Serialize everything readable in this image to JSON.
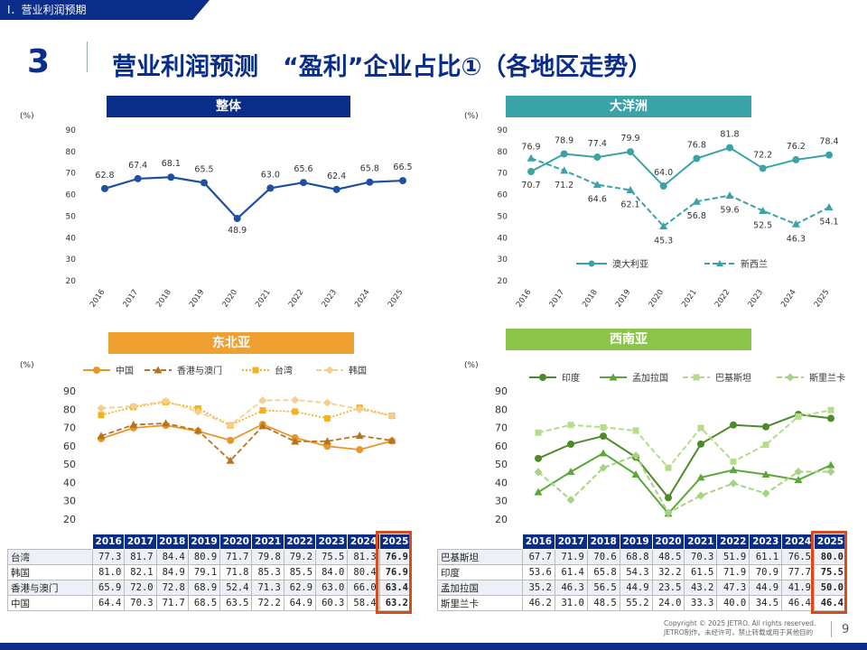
{
  "section_tab": "Ⅰ．营业利润预期",
  "page_number_big": "3",
  "page_title": "营业利润预测　“盈利”企业占比①（各地区走势）",
  "years": [
    "2016",
    "2017",
    "2018",
    "2019",
    "2020",
    "2021",
    "2022",
    "2023",
    "2024",
    "2025"
  ],
  "colors": {
    "navy": "#0a2d8a",
    "teal": "#3aa3a8",
    "orange": "#f0a030",
    "green": "#8cc44a",
    "line_blue": "#1f4fa0",
    "red_box": "#d94a1e"
  },
  "chart_data": [
    {
      "type": "line",
      "title": "整体",
      "unit_label": "(%)",
      "ylim": [
        20,
        90
      ],
      "yticks": [
        "20",
        "30",
        "40",
        "50",
        "60",
        "70",
        "80",
        "90"
      ],
      "categories": [
        "2016",
        "2017",
        "2018",
        "2019",
        "2020",
        "2021",
        "2022",
        "2023",
        "2024",
        "2025"
      ],
      "series": [
        {
          "values": [
            62.8,
            67.4,
            68.1,
            65.5,
            48.9,
            63.0,
            65.6,
            62.4,
            65.8,
            66.5
          ],
          "labels": [
            "62.8",
            "67.4",
            "68.1",
            "65.5",
            "48.9",
            "63.0",
            "65.6",
            "62.4",
            "65.8",
            "66.5"
          ],
          "color": "#1f4fa0"
        }
      ]
    },
    {
      "type": "line",
      "title": "大洋洲",
      "unit_label": "(%)",
      "ylim": [
        20,
        90
      ],
      "yticks": [
        "20",
        "30",
        "40",
        "50",
        "60",
        "70",
        "80",
        "90"
      ],
      "categories": [
        "2016",
        "2017",
        "2018",
        "2019",
        "2020",
        "2021",
        "2022",
        "2023",
        "2024",
        "2025"
      ],
      "legend": [
        "澳大利亚",
        "新西兰"
      ],
      "series": [
        {
          "name": "澳大利亚",
          "values": [
            70.7,
            78.9,
            77.4,
            79.9,
            64.0,
            76.8,
            81.8,
            72.2,
            76.2,
            78.4
          ],
          "labels": [
            "70.7",
            "78.9",
            "77.4",
            "79.9",
            "64.0",
            "76.8",
            "81.8",
            "72.2",
            "76.2",
            "78.4"
          ],
          "color": "#3aa3a8",
          "dash": false
        },
        {
          "name": "新西兰",
          "values": [
            76.9,
            71.2,
            64.6,
            62.1,
            45.3,
            56.8,
            59.6,
            52.5,
            46.3,
            54.1
          ],
          "labels": [
            "76.9",
            "71.2",
            "64.6",
            "62.1",
            "45.3",
            "56.8",
            "59.6",
            "52.5",
            "46.3",
            "54.1"
          ],
          "color": "#3aa3a8",
          "dash": true
        }
      ]
    },
    {
      "type": "line",
      "title": "东北亚",
      "unit_label": "(%)",
      "ylim": [
        20,
        90
      ],
      "yticks": [
        "20",
        "30",
        "40",
        "50",
        "60",
        "70",
        "80",
        "90"
      ],
      "categories": [
        "2016",
        "2017",
        "2018",
        "2019",
        "2020",
        "2021",
        "2022",
        "2023",
        "2024",
        "2025"
      ],
      "legend": [
        "中国",
        "香港与澳门",
        "台湾",
        "韩国"
      ],
      "series": [
        {
          "name": "中国",
          "values": [
            64.4,
            70.3,
            71.7,
            68.5,
            63.5,
            72.2,
            64.9,
            60.3,
            58.4,
            63.2
          ],
          "color": "#e8962a",
          "dash": false,
          "marker": "circle"
        },
        {
          "name": "香港与澳门",
          "values": [
            65.9,
            72.0,
            72.8,
            68.9,
            52.4,
            71.3,
            62.9,
            63.0,
            66.0,
            63.4
          ],
          "color": "#b8741a",
          "dash": true,
          "marker": "triangle"
        },
        {
          "name": "台湾",
          "values": [
            77.3,
            81.7,
            84.4,
            80.9,
            71.7,
            79.8,
            79.2,
            75.5,
            81.3,
            76.9
          ],
          "color": "#f2b21e",
          "dash": "dot",
          "marker": "square"
        },
        {
          "name": "韩国",
          "values": [
            81.0,
            82.1,
            84.9,
            79.1,
            71.8,
            85.3,
            85.5,
            84.0,
            80.4,
            76.9
          ],
          "color": "#f6cf90",
          "dash": true,
          "marker": "diamond"
        }
      ]
    },
    {
      "type": "line",
      "title": "西南亚",
      "unit_label": "(%)",
      "ylim": [
        20,
        90
      ],
      "yticks": [
        "20",
        "30",
        "40",
        "50",
        "60",
        "70",
        "80",
        "90"
      ],
      "categories": [
        "2016",
        "2017",
        "2018",
        "2019",
        "2020",
        "2021",
        "2022",
        "2023",
        "2024",
        "2025"
      ],
      "legend": [
        "印度",
        "孟加拉国",
        "巴基斯坦",
        "斯里兰卡"
      ],
      "series": [
        {
          "name": "印度",
          "values": [
            53.6,
            61.4,
            65.8,
            54.3,
            32.2,
            61.5,
            71.9,
            70.9,
            77.7,
            75.5
          ],
          "color": "#4e8a2a",
          "dash": false,
          "marker": "circle"
        },
        {
          "name": "孟加拉国",
          "values": [
            35.2,
            46.3,
            56.5,
            44.9,
            23.5,
            43.2,
            47.3,
            44.9,
            41.9,
            50.0
          ],
          "color": "#5aa83a",
          "dash": false,
          "marker": "triangle"
        },
        {
          "name": "巴基斯坦",
          "values": [
            67.7,
            71.9,
            70.6,
            68.8,
            48.5,
            70.3,
            51.9,
            61.1,
            76.5,
            80.0
          ],
          "color": "#b4dc8a",
          "dash": true,
          "marker": "square"
        },
        {
          "name": "斯里兰卡",
          "values": [
            46.2,
            31.0,
            48.5,
            55.2,
            24.0,
            33.3,
            40.0,
            34.5,
            46.4,
            46.4
          ],
          "color": "#a6d484",
          "dash": true,
          "marker": "diamond"
        }
      ]
    }
  ],
  "tables": {
    "northeast": {
      "rows": [
        {
          "label": "台湾",
          "values": [
            "77.3",
            "81.7",
            "84.4",
            "80.9",
            "71.7",
            "79.8",
            "79.2",
            "75.5",
            "81.3",
            "76.9"
          ]
        },
        {
          "label": "韩国",
          "values": [
            "81.0",
            "82.1",
            "84.9",
            "79.1",
            "71.8",
            "85.3",
            "85.5",
            "84.0",
            "80.4",
            "76.9"
          ]
        },
        {
          "label": "香港与澳门",
          "values": [
            "65.9",
            "72.0",
            "72.8",
            "68.9",
            "52.4",
            "71.3",
            "62.9",
            "63.0",
            "66.0",
            "63.4"
          ]
        },
        {
          "label": "中国",
          "values": [
            "64.4",
            "70.3",
            "71.7",
            "68.5",
            "63.5",
            "72.2",
            "64.9",
            "60.3",
            "58.4",
            "63.2"
          ]
        }
      ]
    },
    "southwest": {
      "rows": [
        {
          "label": "巴基斯坦",
          "values": [
            "67.7",
            "71.9",
            "70.6",
            "68.8",
            "48.5",
            "70.3",
            "51.9",
            "61.1",
            "76.5",
            "80.0"
          ]
        },
        {
          "label": "印度",
          "values": [
            "53.6",
            "61.4",
            "65.8",
            "54.3",
            "32.2",
            "61.5",
            "71.9",
            "70.9",
            "77.7",
            "75.5"
          ]
        },
        {
          "label": "孟加拉国",
          "values": [
            "35.2",
            "46.3",
            "56.5",
            "44.9",
            "23.5",
            "43.2",
            "47.3",
            "44.9",
            "41.9",
            "50.0"
          ]
        },
        {
          "label": "斯里兰卡",
          "values": [
            "46.2",
            "31.0",
            "48.5",
            "55.2",
            "24.0",
            "33.3",
            "40.0",
            "34.5",
            "46.4",
            "46.4"
          ]
        }
      ]
    }
  },
  "footer": {
    "copyright_line1": "Copyright © 2025 JETRO. All rights reserved.",
    "copyright_line2": "JETRO制作。未经许可，禁止转载或用于其他目的",
    "page": "9"
  }
}
